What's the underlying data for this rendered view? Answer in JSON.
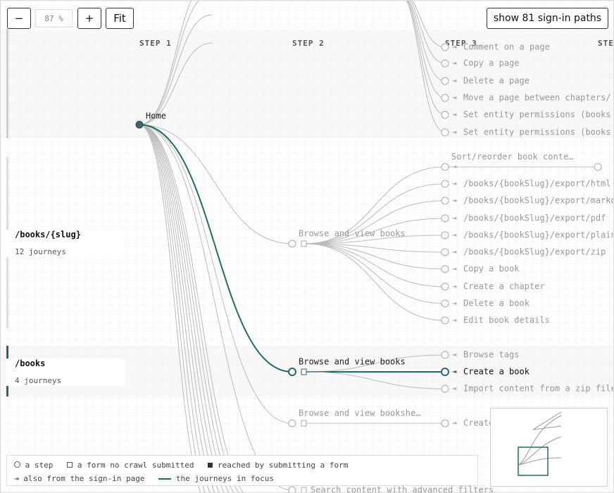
{
  "toolbar": {
    "zoom_out": "−",
    "zoom_value": "87 %",
    "zoom_in": "+",
    "fit": "Fit",
    "sign_in_button": "show 81 sign-in paths"
  },
  "steps": [
    "STEP 1",
    "STEP 2",
    "STEP 3",
    "STEP"
  ],
  "groups": [
    {
      "title": "/books/{slug}",
      "subtitle": "12 journeys"
    },
    {
      "title": "/books",
      "subtitle": "4 journeys"
    }
  ],
  "step1": {
    "label": "Home"
  },
  "step2": [
    {
      "label": "Browse and view books"
    },
    {
      "label": "Browse and view books"
    },
    {
      "label": "Browse and view bookshe…"
    },
    {
      "label": "Search content with advanced filters"
    }
  ],
  "step3": [
    "Comment on a page",
    "Copy a page",
    "Delete a page",
    "Move a page between chapters/",
    "Set entity permissions (books",
    "Set entity permissions (books",
    "Sort/reorder book conte…",
    "/books/{bookSlug}/export/html",
    "/books/{bookSlug}/export/markdown",
    "/books/{bookSlug}/export/pdf",
    "/books/{bookSlug}/export/plaintext",
    "/books/{bookSlug}/export/zip",
    "Copy a book",
    "Create a chapter",
    "Delete a book",
    "Edit book details",
    "Browse tags",
    "Create a book",
    "Import content from a zip file",
    "Create a bookshelf"
  ],
  "legend": [
    "a step",
    "a form no crawl submitted",
    "reached by submitting a form",
    "also from the sign-in page",
    "the journeys in focus"
  ]
}
